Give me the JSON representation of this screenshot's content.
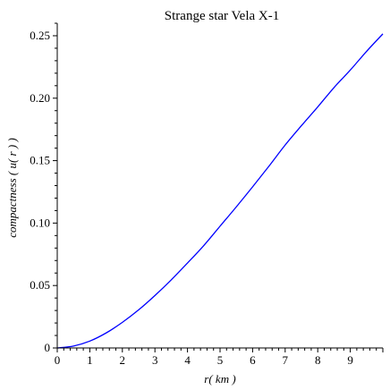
{
  "chart_data": {
    "type": "line",
    "title": "Strange star Vela X-1",
    "xlabel": "r( km )",
    "ylabel": "compactness ( u( r ) )",
    "xlim": [
      0,
      10
    ],
    "ylim": [
      0,
      0.26
    ],
    "x_ticks": [
      0,
      1,
      2,
      3,
      4,
      5,
      6,
      7,
      8,
      9
    ],
    "x_tick_labels": [
      "0",
      "1",
      "2",
      "3",
      "4",
      "5",
      "6",
      "7",
      "8",
      "9"
    ],
    "y_ticks": [
      0,
      0.05,
      0.1,
      0.15,
      0.2,
      0.25
    ],
    "y_tick_labels": [
      "0",
      "0.05",
      "0.10",
      "0.15",
      "0.20",
      "0.25"
    ],
    "series": [
      {
        "color": "#0000ff",
        "x": [
          0,
          0.5,
          1,
          1.5,
          2,
          2.5,
          3,
          3.5,
          4,
          4.5,
          5,
          5.5,
          6,
          6.5,
          7,
          7.5,
          8,
          8.5,
          9,
          9.5,
          10
        ],
        "y": [
          0,
          0.0015,
          0.0055,
          0.012,
          0.0205,
          0.0305,
          0.042,
          0.0545,
          0.068,
          0.082,
          0.0975,
          0.113,
          0.129,
          0.1455,
          0.1625,
          0.178,
          0.193,
          0.2085,
          0.2225,
          0.2375,
          0.2515
        ]
      }
    ]
  }
}
